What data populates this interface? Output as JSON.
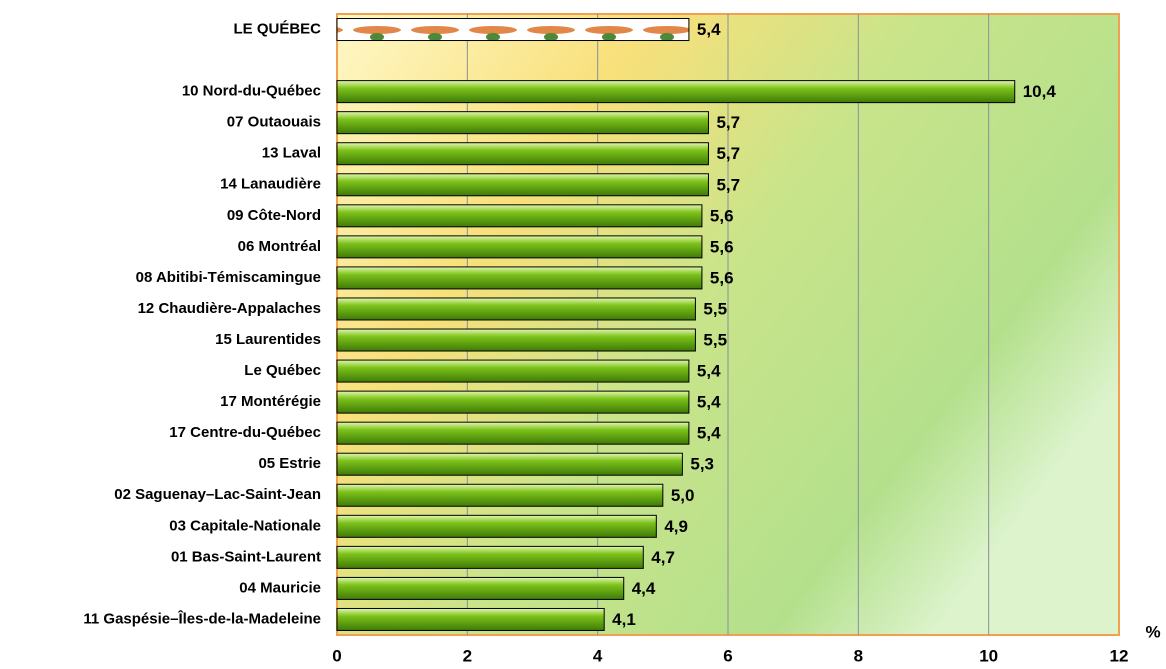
{
  "chart_data": {
    "type": "hbar",
    "categories": [
      "LE QUÉBEC",
      null,
      "10 Nord-du-Québec",
      "07 Outaouais",
      "13 Laval",
      "14 Lanaudière",
      "09 Côte-Nord",
      "06 Montréal",
      "08 Abitibi-Témiscamingue",
      "12 Chaudière-Appalaches",
      "15 Laurentides",
      "Le Québec",
      "17 Montérégie",
      "17 Centre-du-Québec",
      "05 Estrie",
      "02 Saguenay–Lac-Saint-Jean",
      "03 Capitale-Nationale",
      "01 Bas-Saint-Laurent",
      "04 Mauricie",
      "11 Gaspésie–Îles-de-la-Madeleine"
    ],
    "values": [
      5.4,
      null,
      10.4,
      5.7,
      5.7,
      5.7,
      5.6,
      5.6,
      5.6,
      5.5,
      5.5,
      5.4,
      5.4,
      5.4,
      5.3,
      5.0,
      4.9,
      4.7,
      4.4,
      4.1
    ],
    "value_labels": [
      "5,4",
      null,
      "10,4",
      "5,7",
      "5,7",
      "5,7",
      "5,6",
      "5,6",
      "5,6",
      "5,5",
      "5,5",
      "5,4",
      "5,4",
      "5,4",
      "5,3",
      "5,0",
      "4,9",
      "4,7",
      "4,4",
      "4,1"
    ],
    "color": "#7cc21a",
    "xlabel": "%",
    "xlim": [
      0,
      12
    ],
    "xticks": [
      0,
      2,
      4,
      6,
      8,
      10,
      12
    ],
    "grid": true
  }
}
